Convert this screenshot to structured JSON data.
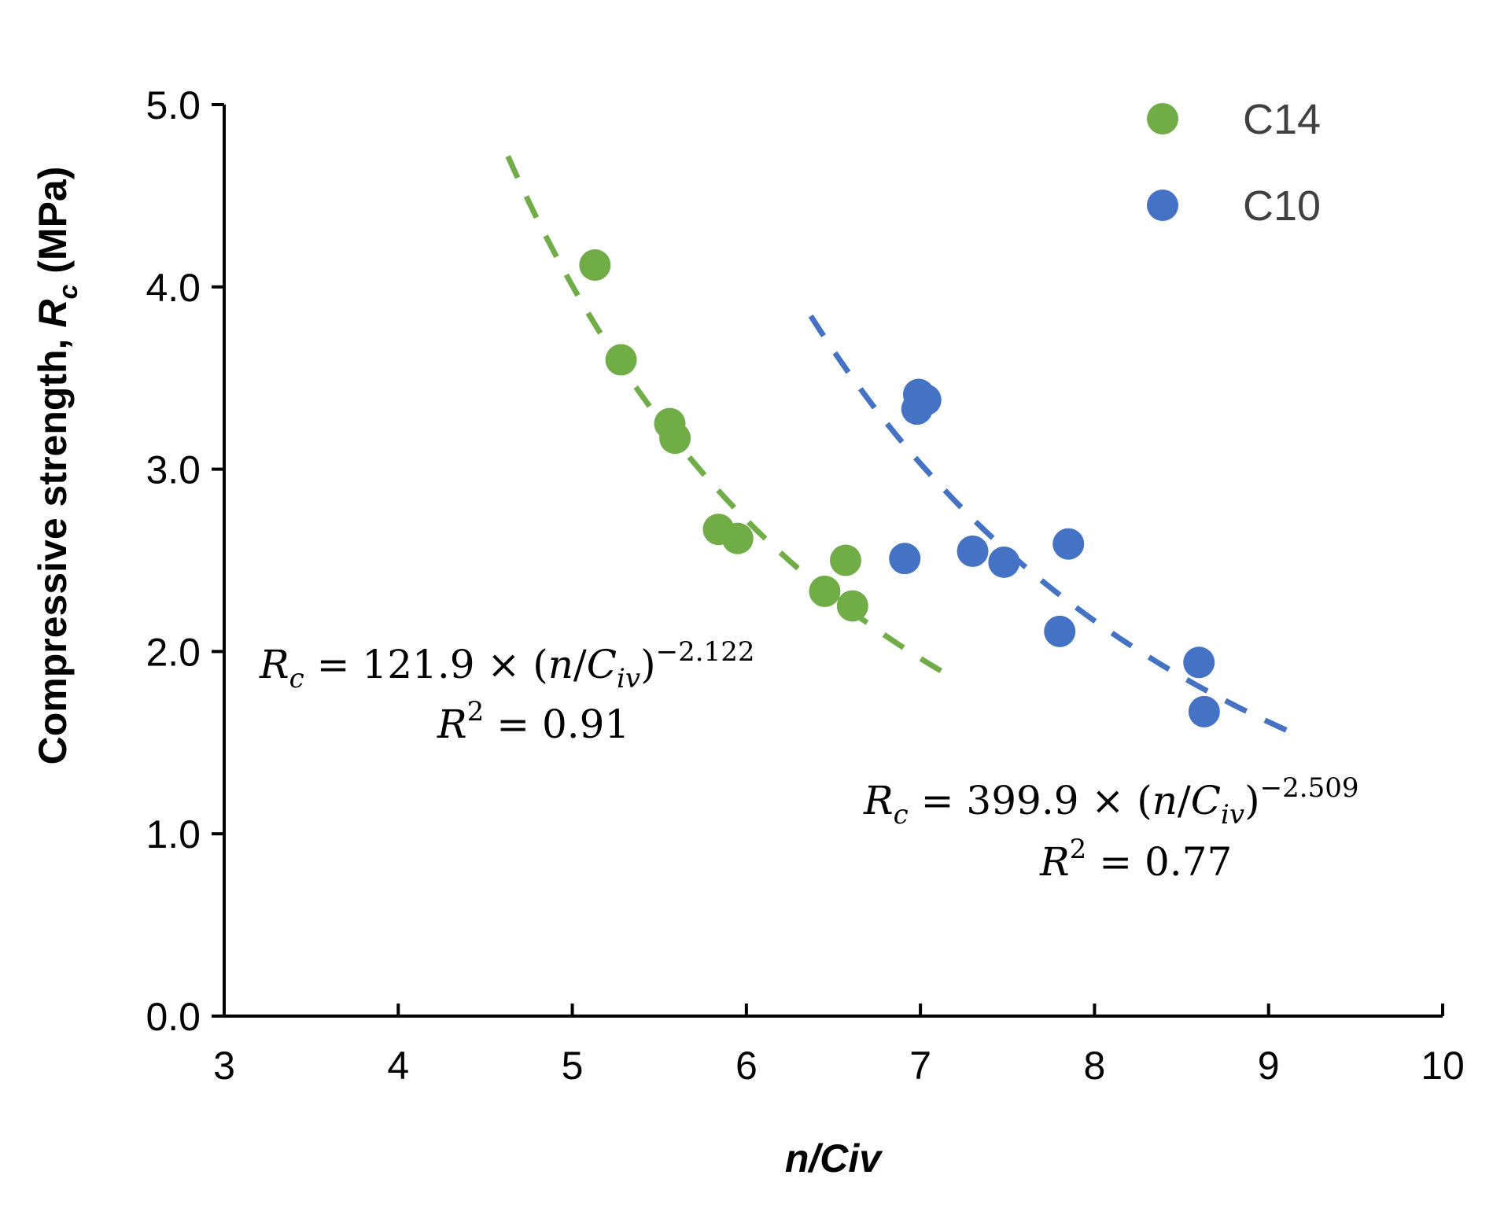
{
  "chart_data": {
    "type": "scatter",
    "xlabel": "n/Civ",
    "ylabel": {
      "prefix": "Compressive strength, ",
      "var": "R",
      "sub": "c",
      "suffix": " (MPa)"
    },
    "xlim": [
      3,
      10
    ],
    "ylim": [
      0,
      5
    ],
    "x_ticks": [
      "3",
      "4",
      "5",
      "6",
      "7",
      "8",
      "9",
      "10"
    ],
    "y_ticks": [
      "0.0",
      "1.0",
      "2.0",
      "3.0",
      "4.0",
      "5.0"
    ],
    "grid": false,
    "legend_position": "top-right",
    "series": [
      {
        "name": "C14",
        "color": "#70AD47",
        "points": [
          [
            5.13,
            4.12
          ],
          [
            5.28,
            3.6
          ],
          [
            5.56,
            3.25
          ],
          [
            5.59,
            3.17
          ],
          [
            5.84,
            2.67
          ],
          [
            5.95,
            2.62
          ],
          [
            6.45,
            2.33
          ],
          [
            6.57,
            2.5
          ],
          [
            6.61,
            2.25
          ]
        ],
        "trend": {
          "a": 121.9,
          "b": -2.122,
          "x_range": [
            4.63,
            7.12
          ]
        },
        "equation": {
          "lhs": "R",
          "lhs_sub": "c",
          "rel": " = 121.9 × (",
          "nvar": "n",
          "slash": "/",
          "cvar": "C",
          "csub": "iv",
          "close": ")",
          "exp": "−2.122",
          "r2_var": "R",
          "r2_sup": "2",
          "r2_rest": " = 0.91"
        }
      },
      {
        "name": "C10",
        "color": "#4472C4",
        "points": [
          [
            6.91,
            2.51
          ],
          [
            6.98,
            3.33
          ],
          [
            6.99,
            3.41
          ],
          [
            7.03,
            3.38
          ],
          [
            7.3,
            2.55
          ],
          [
            7.48,
            2.49
          ],
          [
            7.8,
            2.11
          ],
          [
            7.85,
            2.59
          ],
          [
            8.6,
            1.94
          ],
          [
            8.63,
            1.67
          ]
        ],
        "trend": {
          "a": 399.9,
          "b": -2.509,
          "x_range": [
            6.37,
            9.16
          ]
        },
        "equation": {
          "lhs": "R",
          "lhs_sub": "c",
          "rel": " = 399.9 × (",
          "nvar": "n",
          "slash": "/",
          "cvar": "C",
          "csub": "iv",
          "close": ")",
          "exp": "−2.509",
          "r2_var": "R",
          "r2_sup": "2",
          "r2_rest": " = 0.77"
        }
      }
    ]
  }
}
